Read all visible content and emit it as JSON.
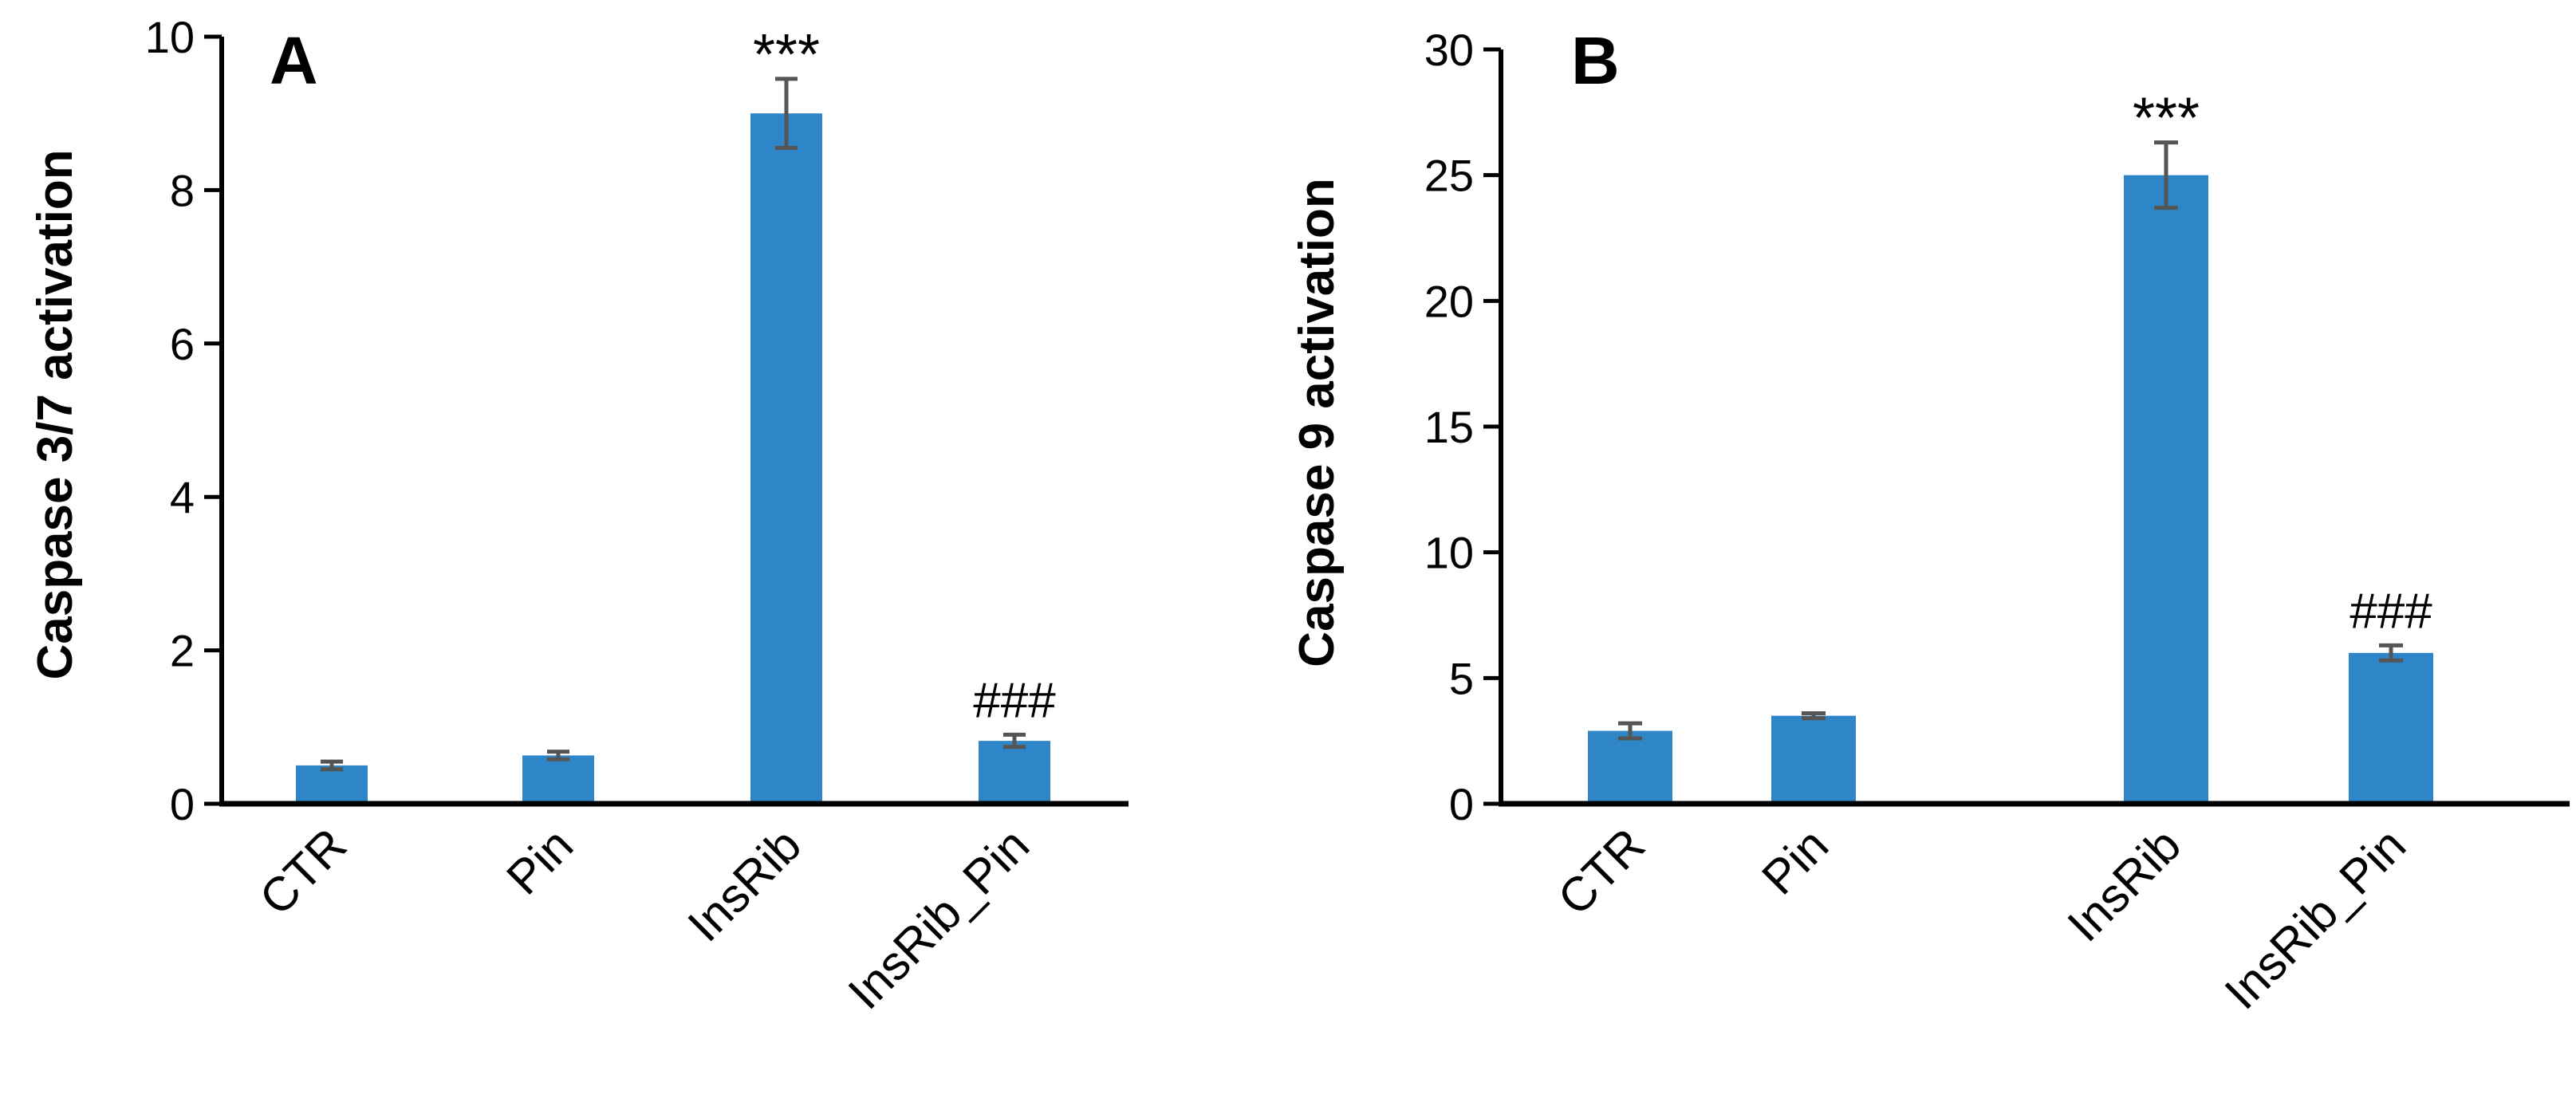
{
  "chart_data": [
    {
      "type": "bar",
      "panel": "A",
      "ylabel": "Caspase  3/7 activation",
      "xlabel": "",
      "ylim": [
        0,
        10
      ],
      "yticks": [
        0,
        2,
        4,
        6,
        8,
        10
      ],
      "categories": [
        "CTR",
        "Pin",
        "InsRib",
        "InsRib_Pin"
      ],
      "values": [
        0.5,
        0.63,
        9.0,
        0.82
      ],
      "errors": [
        0.05,
        0.05,
        0.45,
        0.08
      ],
      "annotations": [
        "",
        "",
        "***",
        "###"
      ],
      "color": "#2e86c8"
    },
    {
      "type": "bar",
      "panel": "B",
      "ylabel": "Caspase  9 activation",
      "xlabel": "",
      "ylim": [
        0,
        30
      ],
      "yticks": [
        0,
        5,
        10,
        15,
        20,
        25,
        30
      ],
      "categories": [
        "CTR",
        "Pin",
        "InsRib",
        "InsRib_Pin"
      ],
      "values": [
        2.9,
        3.5,
        25.0,
        6.0
      ],
      "errors": [
        0.3,
        0.1,
        1.3,
        0.3
      ],
      "annotations": [
        "",
        "",
        "***",
        "###"
      ],
      "color": "#2e86c8"
    }
  ]
}
